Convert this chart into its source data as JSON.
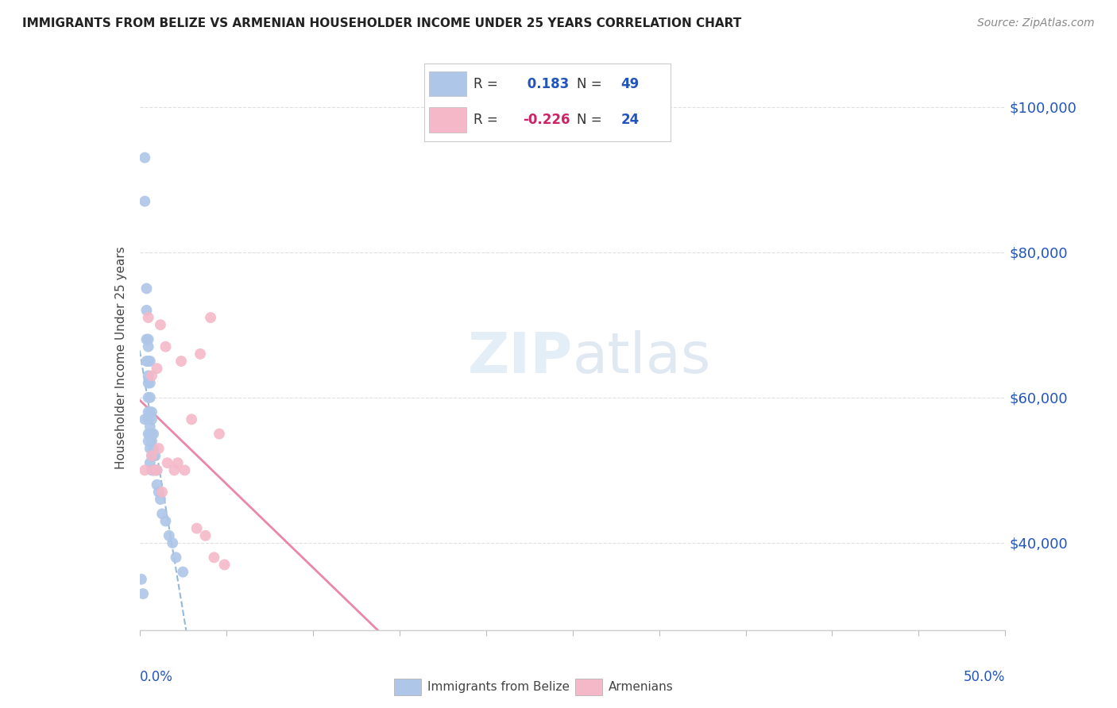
{
  "title": "IMMIGRANTS FROM BELIZE VS ARMENIAN HOUSEHOLDER INCOME UNDER 25 YEARS CORRELATION CHART",
  "source": "Source: ZipAtlas.com",
  "ylabel": "Householder Income Under 25 years",
  "xlim": [
    0.0,
    0.5
  ],
  "ylim": [
    28000,
    103000
  ],
  "yticks": [
    40000,
    60000,
    80000,
    100000
  ],
  "ytick_labels": [
    "$40,000",
    "$60,000",
    "$80,000",
    "$100,000"
  ],
  "belize_R": 0.183,
  "belize_N": 49,
  "armenian_R": -0.226,
  "armenian_N": 24,
  "belize_color": "#aec6e8",
  "armenian_color": "#f4b8c8",
  "belize_trend_color": "#7aa8d4",
  "armenian_trend_color": "#e87aa0",
  "watermark_color": "#d8e8f4",
  "background_color": "#ffffff",
  "grid_color": "#e0e0e0",
  "belize_x": [
    0.001,
    0.002,
    0.003,
    0.003,
    0.003,
    0.004,
    0.004,
    0.004,
    0.004,
    0.005,
    0.005,
    0.005,
    0.005,
    0.005,
    0.005,
    0.005,
    0.005,
    0.005,
    0.005,
    0.006,
    0.006,
    0.006,
    0.006,
    0.006,
    0.006,
    0.006,
    0.006,
    0.007,
    0.007,
    0.007,
    0.007,
    0.007,
    0.007,
    0.008,
    0.008,
    0.008,
    0.008,
    0.009,
    0.009,
    0.01,
    0.01,
    0.011,
    0.012,
    0.013,
    0.015,
    0.017,
    0.019,
    0.021,
    0.025
  ],
  "belize_y": [
    35000,
    33000,
    93000,
    87000,
    57000,
    75000,
    72000,
    68000,
    65000,
    68000,
    67000,
    65000,
    63000,
    62000,
    60000,
    58000,
    57000,
    55000,
    54000,
    65000,
    62000,
    60000,
    58000,
    56000,
    55000,
    53000,
    51000,
    58000,
    57000,
    55000,
    54000,
    52000,
    50000,
    55000,
    53000,
    52000,
    50000,
    52000,
    50000,
    50000,
    48000,
    47000,
    46000,
    44000,
    43000,
    41000,
    40000,
    38000,
    36000
  ],
  "armenian_x": [
    0.003,
    0.005,
    0.007,
    0.007,
    0.008,
    0.01,
    0.01,
    0.011,
    0.012,
    0.013,
    0.015,
    0.016,
    0.02,
    0.022,
    0.024,
    0.026,
    0.03,
    0.033,
    0.035,
    0.038,
    0.041,
    0.043,
    0.046,
    0.049
  ],
  "armenian_y": [
    50000,
    71000,
    63000,
    52000,
    50000,
    64000,
    50000,
    53000,
    70000,
    47000,
    67000,
    51000,
    50000,
    51000,
    65000,
    50000,
    57000,
    42000,
    66000,
    41000,
    71000,
    38000,
    55000,
    37000
  ]
}
